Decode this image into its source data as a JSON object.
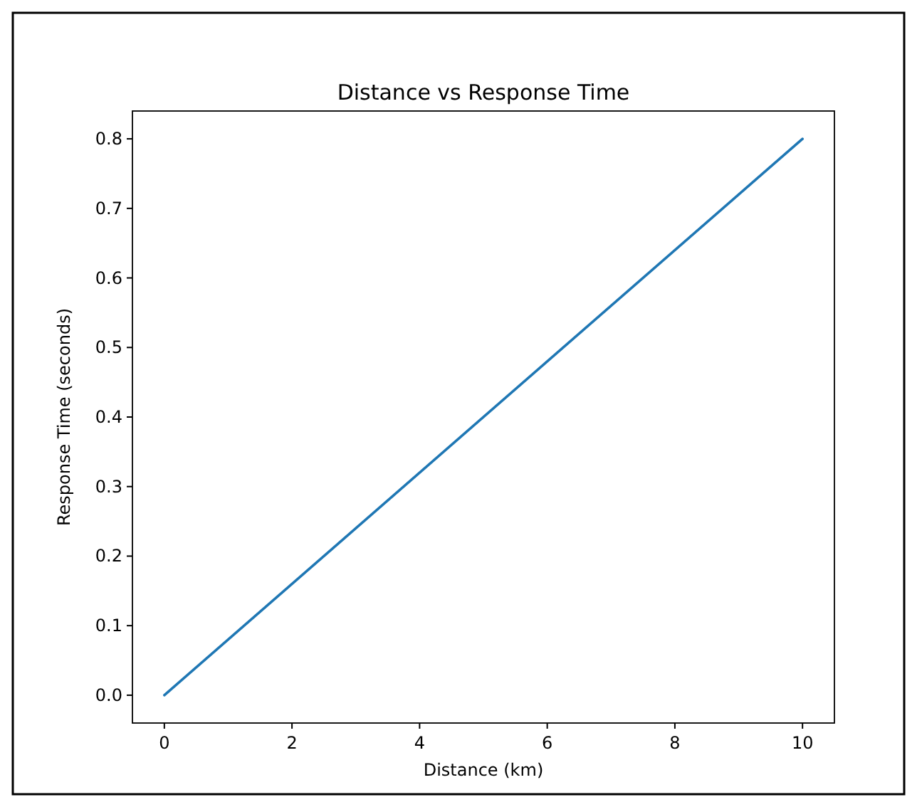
{
  "chart_data": {
    "type": "line",
    "title": "Distance vs Response Time",
    "xlabel": "Distance (km)",
    "ylabel": "Response Time (seconds)",
    "x": [
      0,
      10
    ],
    "series": [
      {
        "color": "#1f77b4",
        "values": [
          0,
          0.8
        ]
      }
    ],
    "xlim": [
      -0.5,
      10.5
    ],
    "xticks": [
      0,
      2,
      4,
      6,
      8,
      10
    ],
    "ylim": [
      -0.04,
      0.84
    ],
    "yticks": [
      {
        "value": 0,
        "label": "0.0"
      },
      0.1,
      0.2,
      0.3,
      0.4,
      0.5,
      0.6,
      0.7,
      0.8
    ],
    "grid": false,
    "marker": "none",
    "line_style": "solid"
  }
}
